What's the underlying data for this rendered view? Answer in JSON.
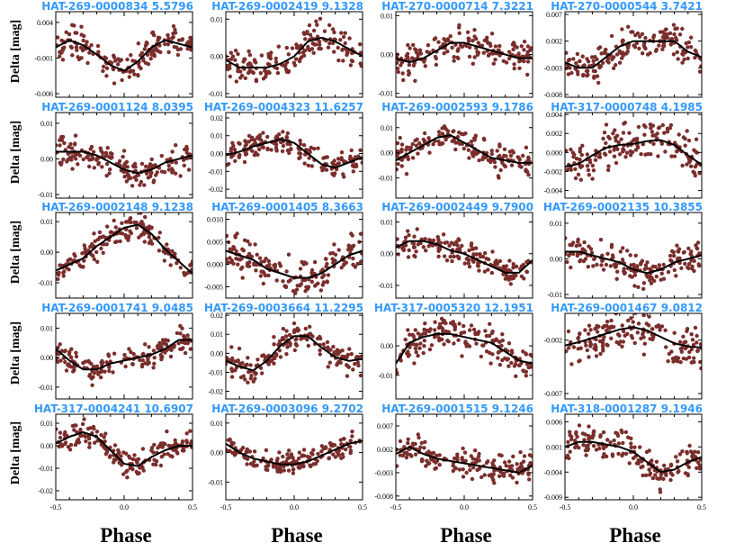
{
  "chart_data": {
    "type": "scatter",
    "point_color": "#7a2e2c",
    "curve_color": "#000000",
    "title_color": "#3399ff",
    "xlim": [
      -0.5,
      0.5
    ],
    "xticks": [
      "-0.5",
      "0.0",
      "0.5"
    ],
    "ylabel": "Delta [mag]",
    "xlabel": "Phase",
    "panels": [
      {
        "title": "HAT-269-0000834   5.5796",
        "ylim": [
          -0.0065,
          0.0055
        ],
        "yticks": [
          "0.004",
          "-0.001",
          "-0.006"
        ],
        "ytick_values": [
          0.004,
          -0.001,
          -0.006
        ],
        "curve_y": [
          0.0005,
          0.0015,
          0.0008,
          -0.0005,
          -0.002,
          -0.0028,
          -0.0015,
          0.0005,
          0.0015,
          0.001,
          0.0005
        ],
        "scatter": 0.0015
      },
      {
        "title": "HAT-269-0002419   9.1328",
        "ylim": [
          -0.011,
          0.012
        ],
        "yticks": [
          "0.01",
          "0.00",
          "-0.01"
        ],
        "ytick_values": [
          0.01,
          0.0,
          -0.01
        ],
        "curve_y": [
          -0.001,
          -0.003,
          -0.003,
          -0.003,
          -0.002,
          0.0,
          0.004,
          0.005,
          0.004,
          0.002,
          0.0
        ],
        "scatter": 0.003
      },
      {
        "title": "HAT-270-0000714   7.3221",
        "ylim": [
          -0.011,
          0.011
        ],
        "yticks": [
          "0.01",
          "0.00",
          "-0.01"
        ],
        "ytick_values": [
          0.01,
          0.0,
          -0.01
        ],
        "curve_y": [
          -0.001,
          -0.002,
          -0.001,
          0.001,
          0.003,
          0.003,
          0.002,
          0.001,
          0.0,
          -0.001,
          -0.001
        ],
        "scatter": 0.003
      },
      {
        "title": "HAT-270-0000544   3.7421",
        "ylim": [
          -0.0085,
          0.0075
        ],
        "yticks": [
          "0.007",
          "0.002",
          "-0.003",
          "-0.008"
        ],
        "ytick_values": [
          0.007,
          0.002,
          -0.003,
          -0.008
        ],
        "curve_y": [
          -0.002,
          -0.003,
          -0.003,
          -0.001,
          0.001,
          0.002,
          0.002,
          0.002,
          0.002,
          0.0,
          -0.001
        ],
        "scatter": 0.002
      },
      {
        "title": "HAT-269-0001124   8.0395",
        "ylim": [
          -0.011,
          0.013
        ],
        "yticks": [
          "0.01",
          "0.00",
          "-0.01"
        ],
        "ytick_values": [
          0.01,
          0.0,
          -0.01
        ],
        "curve_y": [
          0.002,
          0.002,
          0.002,
          0.001,
          -0.001,
          -0.003,
          -0.004,
          -0.003,
          -0.001,
          0.0,
          0.001
        ],
        "scatter": 0.003
      },
      {
        "title": "HAT-269-0004323  11.6257",
        "ylim": [
          -0.025,
          0.023
        ],
        "yticks": [
          "0.02",
          "0.01",
          "0.00",
          "-0.01",
          "-0.02"
        ],
        "ytick_values": [
          0.02,
          0.01,
          0.0,
          -0.01,
          -0.02
        ],
        "curve_y": [
          -0.001,
          0.001,
          0.004,
          0.006,
          0.008,
          0.006,
          0.0,
          -0.006,
          -0.008,
          -0.005,
          -0.002
        ],
        "scatter": 0.005
      },
      {
        "title": "HAT-269-0002593   9.1786",
        "ylim": [
          -0.018,
          0.016
        ],
        "yticks": [
          "0.01",
          "0.00",
          "-0.01"
        ],
        "ytick_values": [
          0.01,
          0.0,
          -0.01
        ],
        "curve_y": [
          -0.003,
          0.0,
          0.003,
          0.006,
          0.007,
          0.004,
          0.001,
          -0.002,
          -0.003,
          -0.004,
          -0.004
        ],
        "scatter": 0.004
      },
      {
        "title": "HAT-317-0000748   4.1985",
        "ylim": [
          -0.0048,
          0.0042
        ],
        "yticks": [
          "0.004",
          "0.002",
          "0.000",
          "-0.002",
          "-0.004"
        ],
        "ytick_values": [
          0.004,
          0.002,
          0.0,
          -0.002,
          -0.004
        ],
        "curve_y": [
          -0.0015,
          -0.0012,
          -0.0003,
          0.0005,
          0.0008,
          0.0009,
          0.0012,
          0.0013,
          0.0008,
          -0.0003,
          -0.0013
        ],
        "scatter": 0.0015
      },
      {
        "title": "HAT-269-0002148   9.1238",
        "ylim": [
          -0.015,
          0.013
        ],
        "yticks": [
          "0.01",
          "0.00",
          "-0.01"
        ],
        "ytick_values": [
          0.01,
          0.0,
          -0.01
        ],
        "curve_y": [
          -0.006,
          -0.004,
          -0.002,
          0.002,
          0.005,
          0.008,
          0.009,
          0.006,
          0.001,
          -0.003,
          -0.007
        ],
        "scatter": 0.003
      },
      {
        "title": "HAT-269-0001405   8.3663",
        "ylim": [
          -0.0075,
          0.0115
        ],
        "yticks": [
          "0.010",
          "0.005",
          "0.000",
          "-0.005"
        ],
        "ytick_values": [
          0.01,
          0.005,
          0.0,
          -0.005
        ],
        "curve_y": [
          0.003,
          0.002,
          0.001,
          -0.001,
          -0.002,
          -0.003,
          -0.003,
          -0.002,
          0.0,
          0.002,
          0.003
        ],
        "scatter": 0.003
      },
      {
        "title": "HAT-269-0002449   9.7900",
        "ylim": [
          -0.014,
          0.013
        ],
        "yticks": [
          "0.01",
          "0.00",
          "-0.01"
        ],
        "ytick_values": [
          0.01,
          0.0,
          -0.01
        ],
        "curve_y": [
          0.002,
          0.004,
          0.004,
          0.003,
          0.001,
          0.0,
          -0.002,
          -0.004,
          -0.006,
          -0.006,
          -0.002
        ],
        "scatter": 0.003
      },
      {
        "title": "HAT-269-0002135  10.3855",
        "ylim": [
          -0.011,
          0.013
        ],
        "yticks": [
          "0.01",
          "0.00",
          "-0.01"
        ],
        "ytick_values": [
          0.01,
          0.0,
          -0.01
        ],
        "curve_y": [
          0.002,
          0.002,
          0.001,
          0.0,
          -0.001,
          -0.003,
          -0.004,
          -0.003,
          -0.001,
          0.0,
          0.001
        ],
        "scatter": 0.003
      },
      {
        "title": "HAT-269-0001741   9.0485",
        "ylim": [
          -0.014,
          0.015
        ],
        "yticks": [
          "0.01",
          "0.00",
          "-0.01"
        ],
        "ytick_values": [
          0.01,
          0.0,
          -0.01
        ],
        "curve_y": [
          0.003,
          -0.001,
          -0.004,
          -0.004,
          -0.002,
          -0.001,
          0.0,
          0.001,
          0.003,
          0.006,
          0.006
        ],
        "scatter": 0.003
      },
      {
        "title": "HAT-269-0003664  11.2295",
        "ylim": [
          -0.024,
          0.021
        ],
        "yticks": [
          "0.02",
          "0.01",
          "0.00",
          "-0.01",
          "-0.02"
        ],
        "ytick_values": [
          0.02,
          0.01,
          0.0,
          -0.01,
          -0.02
        ],
        "curve_y": [
          -0.004,
          -0.007,
          -0.009,
          -0.004,
          0.004,
          0.009,
          0.009,
          0.003,
          -0.002,
          -0.004,
          -0.003
        ],
        "scatter": 0.005
      },
      {
        "title": "HAT-317-0005320  12.1951",
        "ylim": [
          -0.018,
          0.011
        ],
        "yticks": [
          "0.00",
          "-0.01"
        ],
        "ytick_values": [
          0.0,
          -0.01
        ],
        "curve_y": [
          -0.006,
          0.001,
          0.003,
          0.004,
          0.004,
          0.003,
          0.002,
          0.001,
          -0.002,
          -0.005,
          -0.006
        ],
        "scatter": 0.004
      },
      {
        "title": "HAT-269-0001467   9.0812",
        "ylim": [
          -0.0075,
          0.0005
        ],
        "yticks": [
          "-0.002",
          "-0.007"
        ],
        "ytick_values": [
          -0.002,
          -0.007
        ],
        "curve_y": [
          -0.0025,
          -0.0022,
          -0.0018,
          -0.0014,
          -0.001,
          -0.0008,
          -0.0011,
          -0.0017,
          -0.0023,
          -0.0026,
          -0.0027
        ],
        "scatter": 0.0015
      },
      {
        "title": "HAT-317-0004241  10.6907",
        "ylim": [
          -0.024,
          0.014
        ],
        "yticks": [
          "0.01",
          "0.00",
          "-0.01",
          "-0.02"
        ],
        "ytick_values": [
          0.01,
          0.0,
          -0.01,
          -0.02
        ],
        "curve_y": [
          0.001,
          0.004,
          0.006,
          0.004,
          -0.002,
          -0.008,
          -0.009,
          -0.005,
          -0.002,
          0.0,
          0.0
        ],
        "scatter": 0.004
      },
      {
        "title": "HAT-269-0003096   9.2702",
        "ylim": [
          -0.016,
          0.013
        ],
        "yticks": [
          "0.01",
          "0.00",
          "-0.01"
        ],
        "ytick_values": [
          0.01,
          0.0,
          -0.01
        ],
        "curve_y": [
          0.003,
          0.0,
          -0.002,
          -0.003,
          -0.004,
          -0.004,
          -0.003,
          -0.001,
          0.001,
          0.003,
          0.004
        ],
        "scatter": 0.003
      },
      {
        "title": "HAT-269-0001515   9.1246",
        "ylim": [
          -0.0088,
          0.0095
        ],
        "yticks": [
          "0.007",
          "0.002",
          "-0.003",
          "-0.008"
        ],
        "ytick_values": [
          0.007,
          0.002,
          -0.003,
          -0.008
        ],
        "curve_y": [
          0.001,
          0.0025,
          0.001,
          0.0,
          -0.0005,
          -0.001,
          -0.0015,
          -0.002,
          -0.0025,
          -0.003,
          -0.0015
        ],
        "scatter": 0.0022
      },
      {
        "title": "HAT-318-0001287   9.1946",
        "ylim": [
          -0.0095,
          0.0075
        ],
        "yticks": [
          "0.006",
          "0.001",
          "-0.004",
          "-0.009"
        ],
        "ytick_values": [
          0.006,
          0.001,
          -0.004,
          -0.009
        ],
        "curve_y": [
          0.001,
          0.002,
          0.002,
          0.0015,
          0.001,
          0.0,
          -0.002,
          -0.004,
          -0.0035,
          -0.002,
          -0.001
        ],
        "scatter": 0.0022
      }
    ]
  }
}
